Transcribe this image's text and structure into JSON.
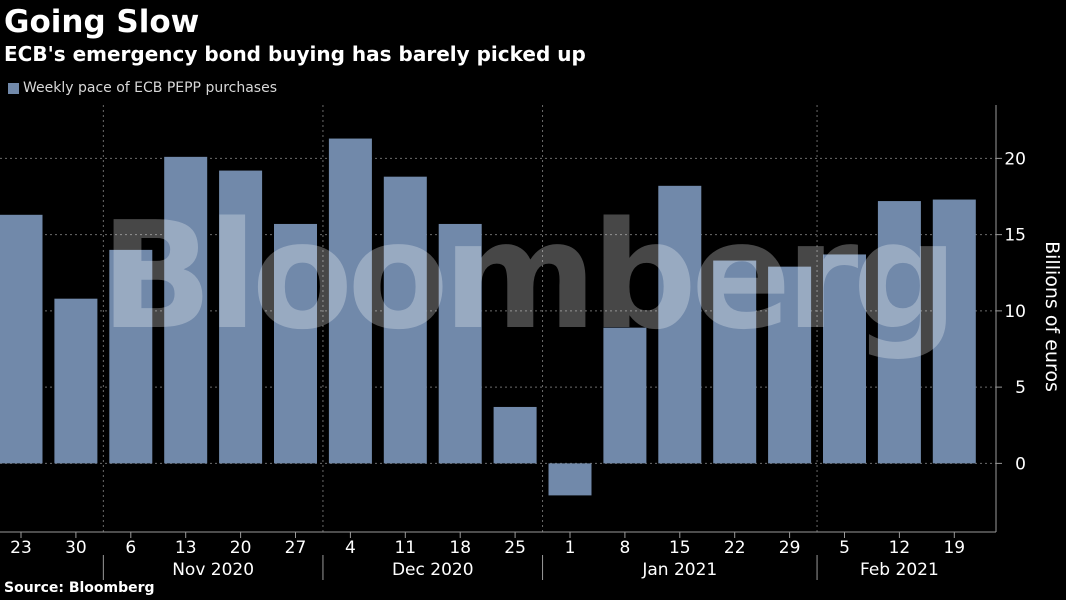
{
  "title": "Going Slow",
  "subtitle": "ECB's emergency bond buying has barely picked up",
  "source": "Source: Bloomberg",
  "watermark": "Bloomberg",
  "colors": {
    "background": "#000000",
    "bar": "#7189aa",
    "grid": "#6b6b6b",
    "text": "#ffffff"
  },
  "chart_data": {
    "type": "bar",
    "legend": "top-left",
    "grid": true,
    "categories": [
      "23",
      "30",
      "6",
      "13",
      "20",
      "27",
      "4",
      "11",
      "18",
      "25",
      "1",
      "8",
      "15",
      "22",
      "29",
      "5",
      "12",
      "19"
    ],
    "month_labels": [
      "Nov 2020",
      "Dec 2020",
      "Jan 2021",
      "Feb 2021"
    ],
    "series": [
      {
        "name": "Weekly pace of ECB PEPP purchases",
        "values": [
          16.3,
          10.8,
          14.0,
          20.1,
          19.2,
          15.7,
          21.3,
          18.8,
          15.7,
          3.7,
          -2.1,
          8.9,
          18.2,
          13.3,
          12.9,
          13.7,
          17.2,
          17.3
        ]
      }
    ],
    "ylabel": "Billions of euros",
    "yticks": [
      0,
      5,
      10,
      15,
      20
    ],
    "ylim": [
      -4.5,
      23.5
    ]
  }
}
